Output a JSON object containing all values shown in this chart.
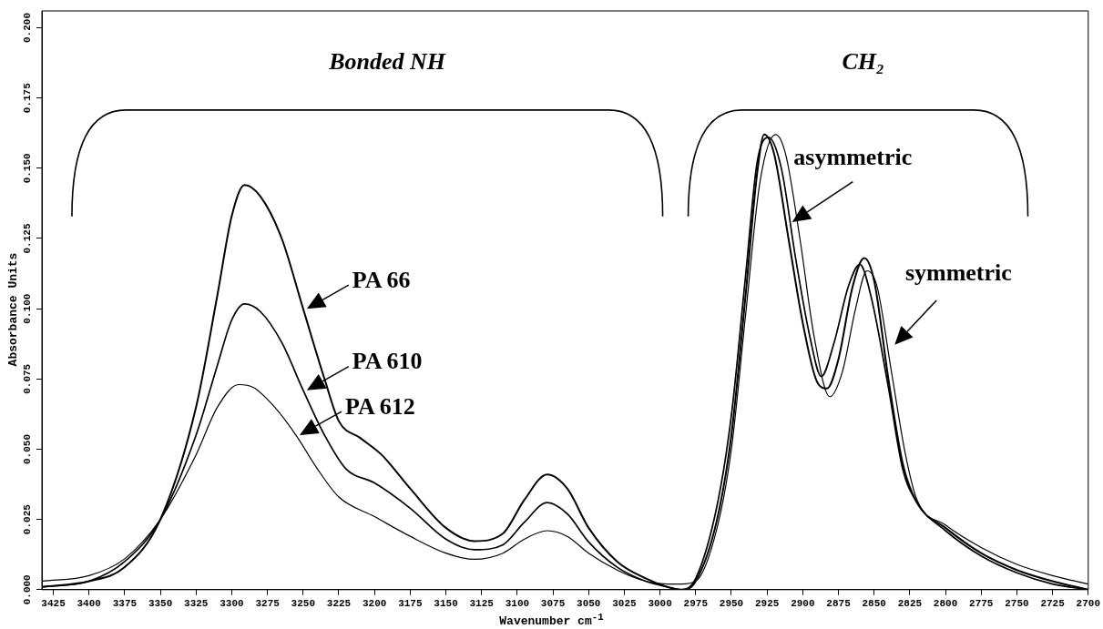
{
  "chart_data": {
    "type": "line",
    "xlabel": "Wavenumber cm$^{-1}$",
    "ylabel": "Absorbance Units",
    "xlim": [
      3433,
      2700
    ],
    "ylim": [
      0,
      0.206
    ],
    "xticks": [
      3425,
      3400,
      3375,
      3350,
      3325,
      3300,
      3275,
      3250,
      3225,
      3200,
      3175,
      3150,
      3125,
      3100,
      3075,
      3050,
      3025,
      3000,
      2975,
      2950,
      2925,
      2900,
      2875,
      2850,
      2825,
      2800,
      2775,
      2750,
      2725,
      2700
    ],
    "yticks": [
      {
        "value": 0,
        "label": "0.000"
      },
      {
        "value": 0.025,
        "label": "0.025"
      },
      {
        "value": 0.05,
        "label": "0.050"
      },
      {
        "value": 0.075,
        "label": "0.075"
      },
      {
        "value": 0.1,
        "label": "0.100"
      },
      {
        "value": 0.125,
        "label": "0.125"
      },
      {
        "value": 0.15,
        "label": "0.150"
      },
      {
        "value": 0.175,
        "label": "0.175"
      },
      {
        "value": 0.2,
        "label": "0.200"
      }
    ],
    "grid": false,
    "legend": "center",
    "marker": "none",
    "line_style": "solid",
    "annotations": [
      "Bonded NH",
      "CH₂",
      "asymmetric",
      "symmetric"
    ],
    "series": [
      {
        "name": "PA 66",
        "color": "#000000",
        "x": [
          3433,
          3400,
          3375,
          3350,
          3325,
          3310,
          3300,
          3291,
          3280,
          3265,
          3250,
          3235,
          3225,
          3210,
          3195,
          3175,
          3150,
          3130,
          3110,
          3095,
          3079,
          3065,
          3050,
          3030,
          3010,
          2995,
          2985,
          2975,
          2960,
          2950,
          2940,
          2932,
          2927,
          2920,
          2910,
          2900,
          2890,
          2883,
          2875,
          2865,
          2857,
          2850,
          2840,
          2830,
          2820,
          2800,
          2775,
          2750,
          2725,
          2700
        ],
        "values": [
          0.001,
          0.003,
          0.008,
          0.025,
          0.065,
          0.105,
          0.133,
          0.144,
          0.14,
          0.125,
          0.1,
          0.075,
          0.06,
          0.054,
          0.048,
          0.036,
          0.022,
          0.0173,
          0.02,
          0.032,
          0.041,
          0.036,
          0.022,
          0.01,
          0.004,
          0.001,
          0.0,
          0.003,
          0.025,
          0.055,
          0.105,
          0.148,
          0.162,
          0.155,
          0.125,
          0.095,
          0.074,
          0.0716,
          0.082,
          0.108,
          0.118,
          0.11,
          0.075,
          0.045,
          0.031,
          0.022,
          0.013,
          0.007,
          0.003,
          0.0
        ]
      },
      {
        "name": "PA 610",
        "color": "#000000",
        "x": [
          3433,
          3400,
          3375,
          3350,
          3325,
          3310,
          3300,
          3291,
          3280,
          3265,
          3250,
          3235,
          3220,
          3200,
          3175,
          3150,
          3130,
          3110,
          3095,
          3079,
          3065,
          3050,
          3030,
          3010,
          2995,
          2985,
          2975,
          2960,
          2950,
          2940,
          2932,
          2924,
          2915,
          2905,
          2895,
          2887,
          2878,
          2868,
          2860,
          2852,
          2840,
          2830,
          2820,
          2800,
          2775,
          2750,
          2725,
          2700
        ],
        "values": [
          0.001,
          0.003,
          0.01,
          0.025,
          0.055,
          0.08,
          0.096,
          0.1017,
          0.099,
          0.088,
          0.071,
          0.055,
          0.043,
          0.038,
          0.029,
          0.018,
          0.0142,
          0.016,
          0.024,
          0.031,
          0.027,
          0.017,
          0.008,
          0.003,
          0.001,
          0.0,
          0.004,
          0.03,
          0.062,
          0.112,
          0.152,
          0.161,
          0.15,
          0.118,
          0.09,
          0.0759,
          0.088,
          0.108,
          0.1158,
          0.104,
          0.072,
          0.043,
          0.031,
          0.021,
          0.012,
          0.006,
          0.002,
          0.0
        ]
      },
      {
        "name": "PA 612",
        "color": "#000000",
        "x": [
          3433,
          3400,
          3375,
          3350,
          3325,
          3310,
          3295,
          3285,
          3270,
          3255,
          3240,
          3225,
          3200,
          3175,
          3150,
          3130,
          3110,
          3095,
          3079,
          3065,
          3050,
          3030,
          3010,
          2995,
          2985,
          2975,
          2960,
          2950,
          2940,
          2930,
          2919,
          2912,
          2902,
          2892,
          2881,
          2872,
          2863,
          2855,
          2848,
          2838,
          2828,
          2820,
          2800,
          2775,
          2750,
          2725,
          2700
        ],
        "values": [
          0.003,
          0.005,
          0.011,
          0.025,
          0.048,
          0.065,
          0.073,
          0.072,
          0.065,
          0.055,
          0.043,
          0.033,
          0.026,
          0.019,
          0.013,
          0.0108,
          0.013,
          0.018,
          0.021,
          0.019,
          0.013,
          0.007,
          0.003,
          0.002,
          0.002,
          0.003,
          0.022,
          0.05,
          0.098,
          0.145,
          0.162,
          0.155,
          0.125,
          0.09,
          0.0687,
          0.078,
          0.1,
          0.1135,
          0.108,
          0.078,
          0.048,
          0.032,
          0.023,
          0.015,
          0.009,
          0.005,
          0.002
        ]
      }
    ]
  }
}
